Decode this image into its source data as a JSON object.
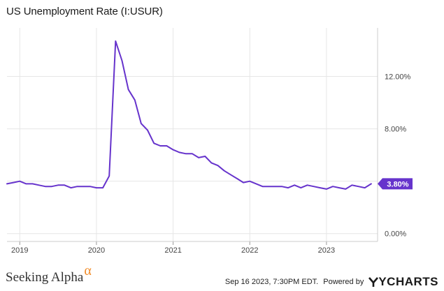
{
  "chart_data": {
    "type": "line",
    "title": "US Unemployment Rate (I:USUR)",
    "series": [
      {
        "name": "US Unemployment Rate",
        "color": "#6633cc",
        "x": [
          "2018-11",
          "2018-12",
          "2019-01",
          "2019-02",
          "2019-03",
          "2019-04",
          "2019-05",
          "2019-06",
          "2019-07",
          "2019-08",
          "2019-09",
          "2019-10",
          "2019-11",
          "2019-12",
          "2020-01",
          "2020-02",
          "2020-03",
          "2020-04",
          "2020-05",
          "2020-06",
          "2020-07",
          "2020-08",
          "2020-09",
          "2020-10",
          "2020-11",
          "2020-12",
          "2021-01",
          "2021-02",
          "2021-03",
          "2021-04",
          "2021-05",
          "2021-06",
          "2021-07",
          "2021-08",
          "2021-09",
          "2021-10",
          "2021-11",
          "2021-12",
          "2022-01",
          "2022-02",
          "2022-03",
          "2022-04",
          "2022-05",
          "2022-06",
          "2022-07",
          "2022-08",
          "2022-09",
          "2022-10",
          "2022-11",
          "2022-12",
          "2023-01",
          "2023-02",
          "2023-03",
          "2023-04",
          "2023-05",
          "2023-06",
          "2023-07",
          "2023-08"
        ],
        "values": [
          3.8,
          3.9,
          4.0,
          3.8,
          3.8,
          3.7,
          3.6,
          3.6,
          3.7,
          3.7,
          3.5,
          3.6,
          3.6,
          3.6,
          3.5,
          3.5,
          4.4,
          14.7,
          13.2,
          11.0,
          10.2,
          8.4,
          7.9,
          6.9,
          6.7,
          6.7,
          6.4,
          6.2,
          6.1,
          6.1,
          5.8,
          5.9,
          5.4,
          5.2,
          4.8,
          4.5,
          4.2,
          3.9,
          4.0,
          3.8,
          3.6,
          3.6,
          3.6,
          3.6,
          3.5,
          3.7,
          3.5,
          3.7,
          3.6,
          3.5,
          3.4,
          3.6,
          3.5,
          3.4,
          3.7,
          3.6,
          3.5,
          3.8
        ]
      }
    ],
    "last_value_label": "3.80%",
    "y_ticks": [
      "0.00%",
      "4.00%",
      "8.00%",
      "12.00%"
    ],
    "y_tick_values": [
      0,
      4,
      8,
      12
    ],
    "ylim": [
      -0.6,
      15.6
    ],
    "x_ticks": [
      "2019",
      "2020",
      "2021",
      "2022",
      "2023"
    ],
    "x_tick_dates": [
      "2019-01",
      "2020-01",
      "2021-01",
      "2022-01",
      "2023-01"
    ],
    "xlim": [
      "2018-11",
      "2023-09"
    ],
    "grid": true,
    "legend": "none"
  },
  "footer": {
    "brand": "Seeking Alpha",
    "brand_symbol": "α",
    "timestamp": "Sep 16 2023, 7:30PM EDT.",
    "powered_by": "Powered by",
    "provider": "YCHARTS"
  },
  "colors": {
    "line": "#6633cc",
    "label_bg": "#6633cc",
    "grid": "#e6e6e6",
    "axis_text": "#444444",
    "brand_accent": "#f28c28"
  }
}
